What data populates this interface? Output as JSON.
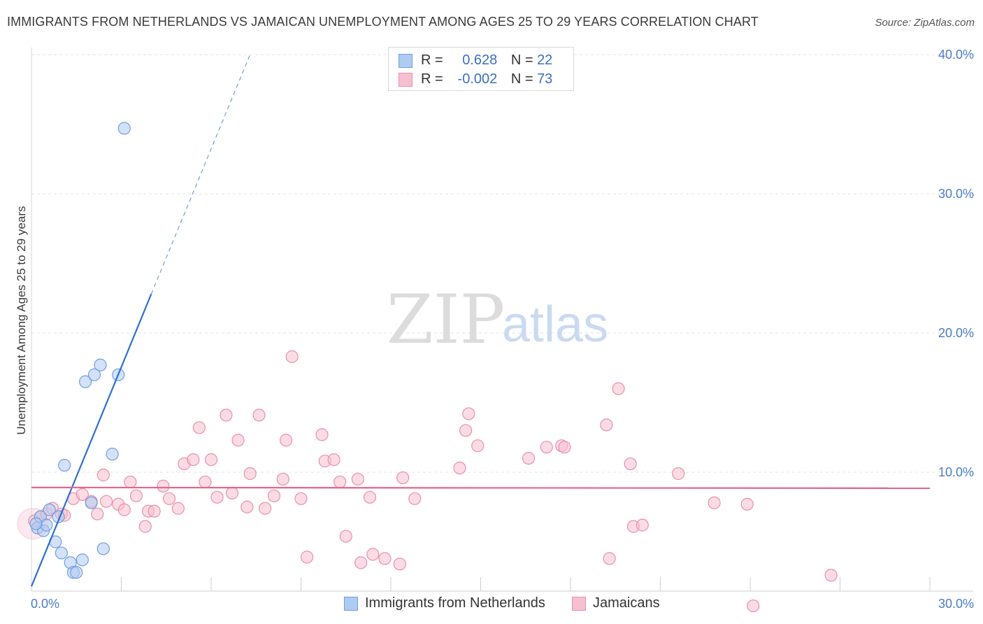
{
  "title": "IMMIGRANTS FROM NETHERLANDS VS JAMAICAN UNEMPLOYMENT AMONG AGES 25 TO 29 YEARS CORRELATION CHART",
  "source": "Source: ZipAtlas.com",
  "watermark": {
    "zip": "ZIP",
    "atlas": "atlas"
  },
  "legend": {
    "rows": [
      {
        "r_label": "R =",
        "r_value": "0.628",
        "n_label": "N =",
        "n_value": "22"
      },
      {
        "r_label": "R =",
        "r_value": "-0.002",
        "n_label": "N =",
        "n_value": "73"
      }
    ]
  },
  "bottom_legend": {
    "series1": "Immigrants from Netherlands",
    "series2": "Jamaicans"
  },
  "colors": {
    "blue_fill": "#aecbf2",
    "blue_stroke": "#6f9fe0",
    "blue_line": "#2f6fd0",
    "pink_fill": "#f7c0d0",
    "pink_stroke": "#e890ab",
    "pink_line": "#e8648c",
    "grid": "#e3e3e3",
    "tick_text": "#4a7cc9"
  },
  "chart_data": {
    "type": "scatter",
    "title": "IMMIGRANTS FROM NETHERLANDS VS JAMAICAN UNEMPLOYMENT AMONG AGES 25 TO 29 YEARS CORRELATION CHART",
    "xlabel": "",
    "ylabel": "Unemployment Among Ages 25 to 29 years",
    "xlim": [
      0,
      30
    ],
    "ylim": [
      0,
      40
    ],
    "x_ticks": [
      0,
      3,
      6,
      9,
      12,
      15,
      18,
      21,
      24,
      27,
      30
    ],
    "x_tick_labels": [
      {
        "value": 0,
        "label": "0.0%"
      },
      {
        "value": 30,
        "label": "30.0%"
      }
    ],
    "y_ticks": [
      {
        "value": 10,
        "label": "10.0%"
      },
      {
        "value": 20,
        "label": "20.0%"
      },
      {
        "value": 30,
        "label": "30.0%"
      },
      {
        "value": 40,
        "label": "40.0%"
      }
    ],
    "grid": true,
    "series": [
      {
        "name": "Immigrants from Netherlands",
        "r": 0.628,
        "n": 22,
        "points": [
          [
            0.2,
            6.0
          ],
          [
            0.3,
            6.8
          ],
          [
            0.4,
            5.8
          ],
          [
            0.5,
            6.2
          ],
          [
            0.6,
            7.3
          ],
          [
            0.8,
            5.0
          ],
          [
            0.9,
            6.8
          ],
          [
            1.0,
            4.2
          ],
          [
            1.1,
            10.5
          ],
          [
            1.3,
            3.5
          ],
          [
            1.4,
            2.8
          ],
          [
            1.5,
            2.8
          ],
          [
            1.7,
            3.7
          ],
          [
            1.8,
            16.5
          ],
          [
            2.0,
            7.8
          ],
          [
            2.1,
            17.0
          ],
          [
            2.3,
            17.7
          ],
          [
            2.4,
            4.5
          ],
          [
            2.7,
            11.3
          ],
          [
            2.9,
            17.0
          ],
          [
            3.1,
            34.7
          ],
          [
            0.15,
            6.3
          ]
        ],
        "trend": {
          "x0": 0.0,
          "y0": 1.8,
          "x1": 4.0,
          "y1": 22.8,
          "x_dash_end": 7.3,
          "y_dash_end": 40.0
        }
      },
      {
        "name": "Jamaicans",
        "r": -0.002,
        "n": 73,
        "points": [
          [
            0.1,
            6.5
          ],
          [
            0.3,
            6.8
          ],
          [
            0.5,
            7.0
          ],
          [
            0.7,
            7.4
          ],
          [
            1.0,
            7.0
          ],
          [
            1.1,
            6.9
          ],
          [
            1.4,
            8.1
          ],
          [
            1.7,
            8.4
          ],
          [
            2.0,
            7.9
          ],
          [
            2.2,
            7.0
          ],
          [
            2.4,
            9.8
          ],
          [
            2.5,
            7.9
          ],
          [
            2.9,
            7.7
          ],
          [
            3.1,
            7.3
          ],
          [
            3.3,
            9.3
          ],
          [
            3.5,
            8.3
          ],
          [
            3.8,
            6.1
          ],
          [
            3.9,
            7.2
          ],
          [
            4.1,
            7.2
          ],
          [
            4.4,
            9.0
          ],
          [
            4.6,
            8.1
          ],
          [
            4.9,
            7.4
          ],
          [
            5.1,
            10.6
          ],
          [
            5.4,
            10.9
          ],
          [
            5.6,
            13.2
          ],
          [
            5.8,
            9.3
          ],
          [
            6.0,
            10.9
          ],
          [
            6.2,
            8.2
          ],
          [
            6.5,
            14.1
          ],
          [
            6.7,
            8.5
          ],
          [
            6.9,
            12.3
          ],
          [
            7.2,
            7.5
          ],
          [
            7.3,
            9.9
          ],
          [
            7.6,
            14.1
          ],
          [
            7.8,
            7.4
          ],
          [
            8.1,
            8.3
          ],
          [
            8.4,
            9.5
          ],
          [
            8.5,
            12.3
          ],
          [
            8.7,
            18.3
          ],
          [
            9.0,
            8.1
          ],
          [
            9.2,
            3.9
          ],
          [
            9.7,
            12.7
          ],
          [
            9.8,
            10.8
          ],
          [
            10.1,
            10.9
          ],
          [
            10.3,
            9.3
          ],
          [
            10.5,
            5.4
          ],
          [
            10.9,
            9.5
          ],
          [
            11.0,
            3.5
          ],
          [
            11.3,
            8.2
          ],
          [
            11.4,
            4.1
          ],
          [
            11.8,
            3.8
          ],
          [
            12.3,
            3.4
          ],
          [
            12.4,
            9.6
          ],
          [
            12.8,
            8.1
          ],
          [
            14.3,
            10.3
          ],
          [
            14.5,
            13.0
          ],
          [
            14.6,
            14.2
          ],
          [
            14.9,
            11.9
          ],
          [
            16.6,
            11.0
          ],
          [
            17.2,
            11.8
          ],
          [
            17.7,
            11.9
          ],
          [
            17.8,
            11.8
          ],
          [
            19.2,
            13.4
          ],
          [
            19.3,
            3.8
          ],
          [
            19.6,
            16.0
          ],
          [
            20.0,
            10.6
          ],
          [
            20.1,
            6.1
          ],
          [
            20.4,
            6.2
          ],
          [
            21.6,
            9.9
          ],
          [
            22.8,
            7.8
          ],
          [
            23.9,
            7.7
          ],
          [
            24.1,
            0.4
          ],
          [
            26.7,
            2.6
          ]
        ],
        "trend": {
          "x0": 0.0,
          "y0": 8.9,
          "x1": 30.0,
          "y1": 8.85
        }
      }
    ]
  }
}
